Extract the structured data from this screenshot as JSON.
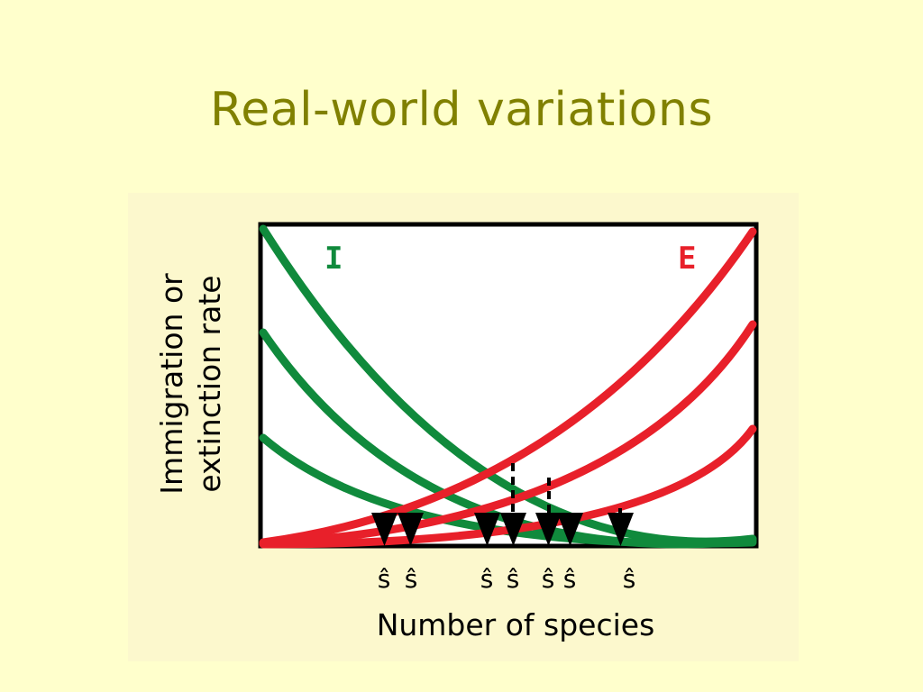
{
  "slide": {
    "title": "Real-world variations"
  },
  "figure": {
    "ylabel_line1": "Immigration or",
    "ylabel_line2": "extinction rate",
    "xlabel": "Number of species",
    "immigration_label": "I",
    "extinction_label": "E",
    "equilibrium_symbol": "ŝ",
    "equilibrium_count": 7,
    "colors": {
      "immigration": "#108a3c",
      "extinction": "#e8202a",
      "frame": "#000000",
      "plot_background": "#ffffff",
      "panel_background": "#fcf8cd"
    }
  }
}
